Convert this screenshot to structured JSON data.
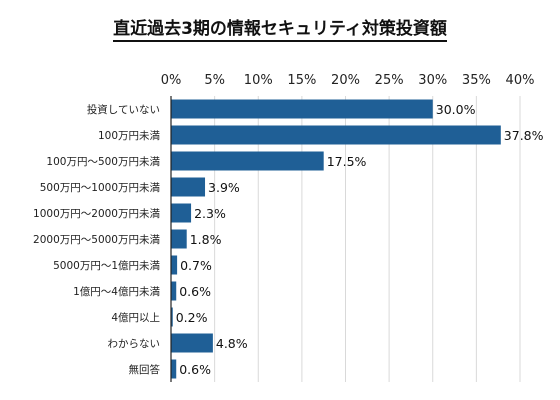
{
  "chart_data": {
    "type": "bar",
    "orientation": "horizontal",
    "title": "直近過去3期の情報セキュリティ対策投資額",
    "xlabel": "",
    "ylabel": "",
    "xlim": [
      0,
      40
    ],
    "x_ticks": [
      "0%",
      "5%",
      "10%",
      "15%",
      "20%",
      "25%",
      "30%",
      "35%",
      "40%"
    ],
    "grid": true,
    "legend": "none",
    "bar_color": "#1f5f96",
    "categories": [
      "投資していない",
      "100万円未満",
      "100万円～500万円未満",
      "500万円～1000万円未満",
      "1000万円～2000万円未満",
      "2000万円～5000万円未満",
      "5000万円～1億円未満",
      "1億円～4億円未満",
      "4億円以上",
      "わからない",
      "無回答"
    ],
    "values": [
      30.0,
      37.8,
      17.5,
      3.9,
      2.3,
      1.8,
      0.7,
      0.6,
      0.2,
      4.8,
      0.6
    ],
    "data_labels": [
      "30.0%",
      "37.8%",
      "17.5%",
      "3.9%",
      "2.3%",
      "1.8%",
      "0.7%",
      "0.6%",
      "0.2%",
      "4.8%",
      "0.6%"
    ]
  }
}
